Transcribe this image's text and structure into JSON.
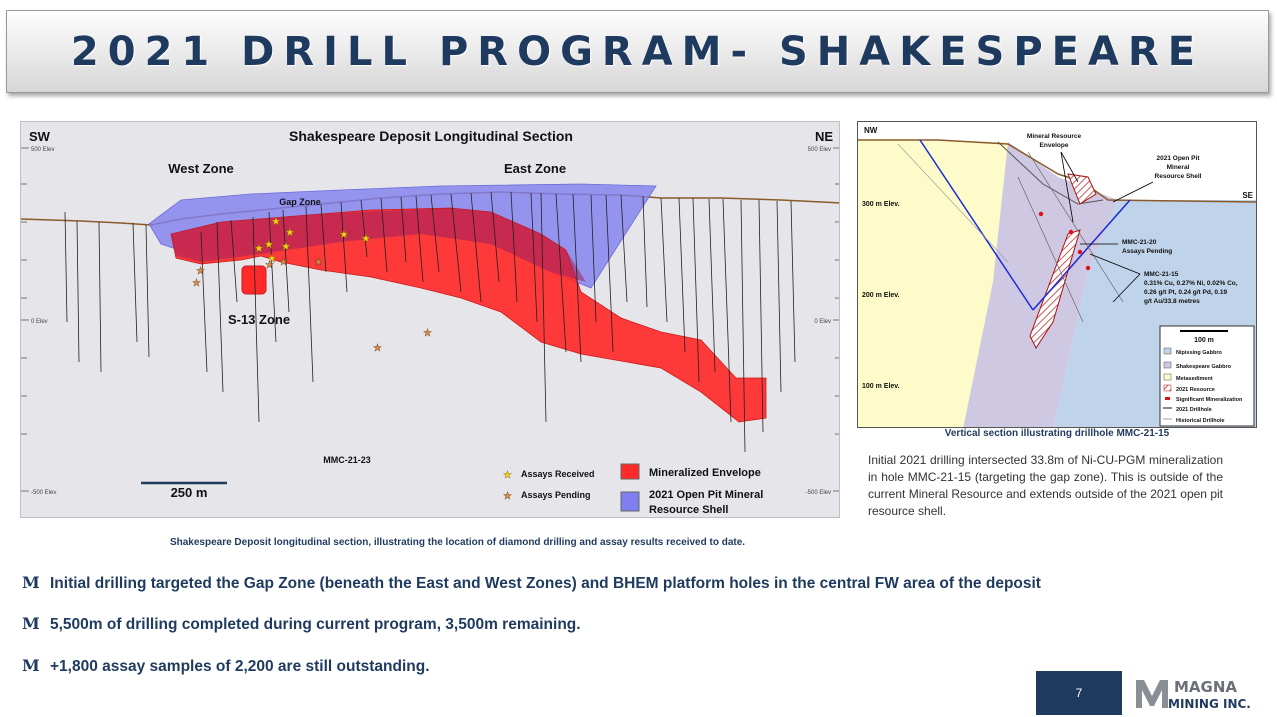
{
  "title": "2021 DRILL PROGRAM- SHAKESPEARE",
  "long_section": {
    "title": "Shakespeare Deposit Longitudinal Section",
    "left_dir": "SW",
    "right_dir": "NE",
    "elev_top": "500 Elev",
    "elev_mid": "0 Elev",
    "elev_bottom": "-500 Elev",
    "elev_top_r": "500 Elev",
    "elev_mid_r": "0 Elev",
    "elev_bottom_r": "-500 Elev",
    "west_zone": "West Zone",
    "east_zone": "East Zone",
    "gap_zone": "Gap Zone",
    "s13_zone": "S-13 Zone",
    "hole_label": "MMC-21-23",
    "scale_label": "250 m",
    "legend": {
      "assays_received": "Assays Received",
      "assays_pending": "Assays Pending",
      "mineralized_envelope": "Mineralized Envelope",
      "pit_shell_line1": "2021 Open Pit Mineral",
      "pit_shell_line2": "Resource Shell"
    },
    "colors": {
      "envelope": "#ff2a2a",
      "pit_shell": "#7f7ff0",
      "background": "#e6e6ea"
    }
  },
  "left_caption": "Shakespeare Deposit longitudinal section, illustrating the location of diamond drilling and assay results received to date.",
  "vert_section": {
    "nw": "NW",
    "se": "SE",
    "elev_300": "300 m Elev.",
    "elev_200": "200 m Elev.",
    "elev_100": "100 m Elev.",
    "mre_line1": "Mineral Resource",
    "mre_line2": "Envelope",
    "pit_line1": "2021 Open Pit",
    "pit_line2": "Mineral",
    "pit_line3": "Resource Shell",
    "h20_line1": "MMC-21-20",
    "h20_line2": "Assays Pending",
    "h15_title": "MMC-21-15",
    "h15_line1": "0.31% Cu, 0.27% Ni, 0.02% Co,",
    "h15_line2": "0.26 g/t Pt, 0.24 g/t Pd, 0.19",
    "h15_line3": "g/t Au/33.8 metres",
    "scale": "100 m",
    "legend": {
      "nipissing": "Nipissing Gabbro",
      "shakespeare": "Shakespeare Gabbro",
      "metasediment": "Metasediment",
      "resource": "2021 Resource",
      "significant": "Significant Mineralization",
      "drillhole": "2021 Drillhole",
      "historical": "Historical Drillhole"
    },
    "colors": {
      "nipissing": "#bfd3ea",
      "shakespeare": "#cfc8e3",
      "metasediment": "#fdfbc9"
    }
  },
  "right_caption": "Vertical section illustrating drillhole MMC-21-15",
  "right_paragraph": "Initial 2021 drilling intersected 33.8m of Ni-CU-PGM mineralization in hole MMC-21-15 (targeting the gap zone). This is outside of the current Mineral Resource and extends outside of the 2021 open pit resource shell.",
  "bullets": [
    "Initial drilling targeted the Gap Zone (beneath the East and West Zones) and BHEM platform holes in the central FW area of the deposit",
    "5,500m of drilling completed during current program, 3,500m remaining.",
    "+1,800 assay samples of 2,200 are still outstanding."
  ],
  "bullet_mark": "M",
  "page_number": "7",
  "logo": {
    "line1": "MAGNA",
    "line2": "MINING INC."
  }
}
